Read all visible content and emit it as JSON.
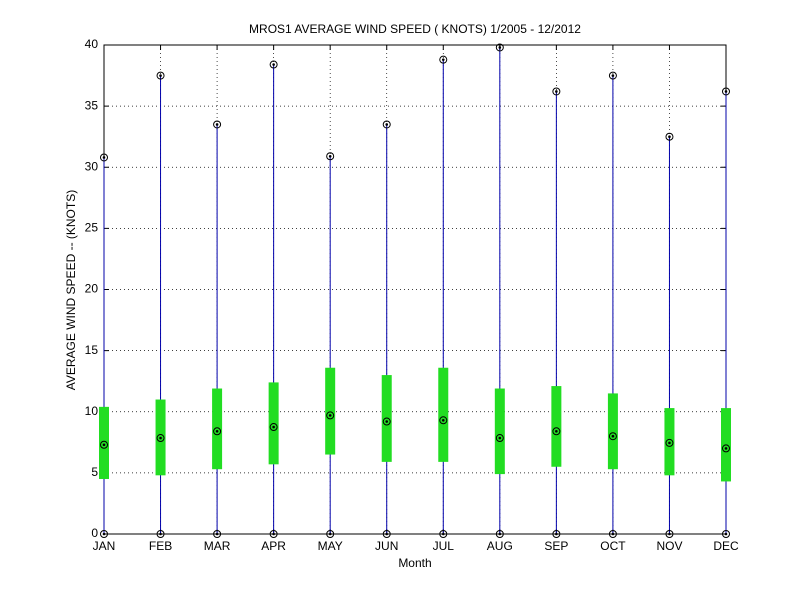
{
  "chart_data": {
    "type": "range-box",
    "title": "MROS1  AVERAGE WIND SPEED ( KNOTS) 1/2005 - 12/2012",
    "x_label": "Month",
    "y_label": "AVERAGE WIND SPEED -- (KNOTS)",
    "categories": [
      "JAN",
      "FEB",
      "MAR",
      "APR",
      "MAY",
      "JUN",
      "JUL",
      "AUG",
      "SEP",
      "OCT",
      "NOV",
      "DEC"
    ],
    "min": [
      0,
      0,
      0,
      0,
      0,
      0,
      0,
      0,
      0,
      0,
      0,
      0
    ],
    "max": [
      30.8,
      37.5,
      33.5,
      38.4,
      30.9,
      33.5,
      38.8,
      39.8,
      36.2,
      37.5,
      32.5,
      36.2
    ],
    "mean": [
      7.3,
      7.85,
      8.4,
      8.75,
      9.7,
      9.2,
      9.3,
      7.85,
      8.4,
      8.0,
      7.45,
      7.0
    ],
    "box_low": [
      4.5,
      4.8,
      5.3,
      5.7,
      6.5,
      5.9,
      5.9,
      4.9,
      5.5,
      5.3,
      4.8,
      4.3
    ],
    "box_high": [
      10.4,
      11.0,
      11.9,
      12.4,
      13.6,
      13.0,
      13.6,
      11.9,
      12.1,
      11.5,
      10.3,
      10.3
    ],
    "line_color": "#0000aa",
    "box_color": "#22dd22",
    "marker_color": "#000000",
    "ylim": [
      0,
      40
    ],
    "yticks": [
      0,
      5,
      10,
      15,
      20,
      25,
      30,
      35,
      40
    ],
    "grid": true
  }
}
